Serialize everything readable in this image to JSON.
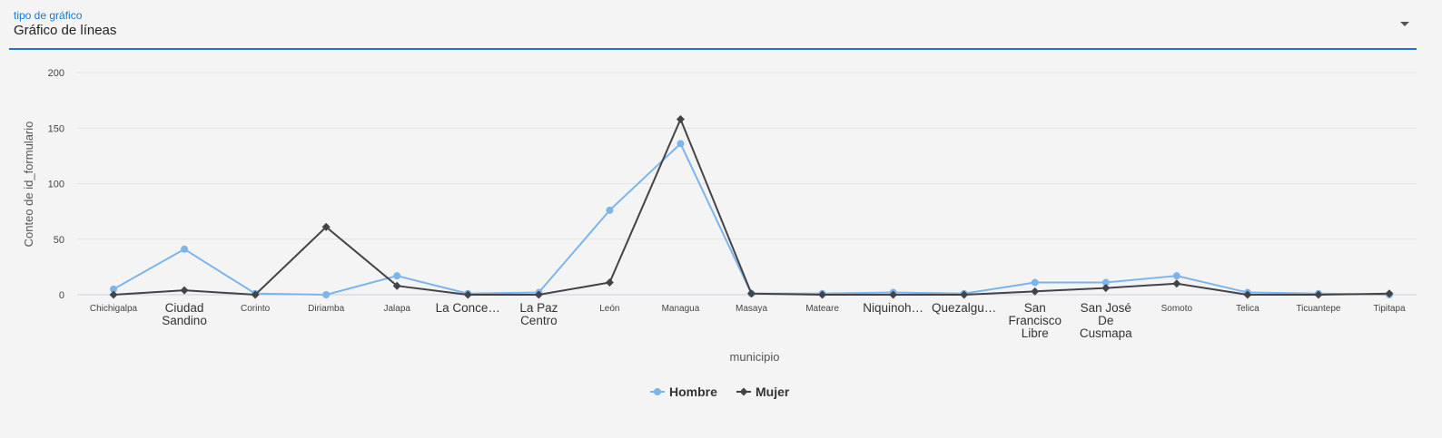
{
  "selector": {
    "label": "tipo de gráfico",
    "value": "Gráfico de líneas"
  },
  "chart_data": {
    "type": "line",
    "title": "",
    "xlabel": "municipio",
    "ylabel": "Conteo de id_formulario",
    "ylim": [
      0,
      200
    ],
    "yticks": [
      0,
      50,
      100,
      150,
      200
    ],
    "grid": true,
    "legend_position": "bottom-center",
    "categories": [
      "Chichigalpa",
      "Ciudad Sandino",
      "Corinto",
      "Diriamba",
      "Jalapa",
      "La Concepción",
      "La Paz Centro",
      "León",
      "Managua",
      "Masaya",
      "Mateare",
      "Niquinohomo",
      "Quezalguaque",
      "San Francisco Libre",
      "San José De Cusmapa",
      "Somoto",
      "Telica",
      "Ticuantepe",
      "Tipitapa"
    ],
    "tick_labels": [
      [
        "Chichigalpa"
      ],
      [
        "Ciudad",
        "Sandino"
      ],
      [
        "Corinto"
      ],
      [
        "Diriamba"
      ],
      [
        "Jalapa"
      ],
      [
        "La Conce…"
      ],
      [
        "La Paz",
        "Centro"
      ],
      [
        "León"
      ],
      [
        "Managua"
      ],
      [
        "Masaya"
      ],
      [
        "Mateare"
      ],
      [
        "Niquinoh…"
      ],
      [
        "Quezalgu…"
      ],
      [
        "San",
        "Francisco",
        "Libre"
      ],
      [
        "San José",
        "De",
        "Cusmapa"
      ],
      [
        "Somoto"
      ],
      [
        "Telica"
      ],
      [
        "Ticuantepe"
      ],
      [
        "Tipitapa"
      ]
    ],
    "big_labels": [
      1,
      5,
      6,
      11,
      12,
      13,
      14
    ],
    "series": [
      {
        "name": "Hombre",
        "color": "#7cb5ec",
        "marker": "circle",
        "values": [
          5,
          41,
          1,
          0,
          17,
          1,
          2,
          76,
          136,
          1,
          1,
          2,
          1,
          11,
          11,
          17,
          2,
          1,
          0
        ]
      },
      {
        "name": "Mujer",
        "color": "#434348",
        "marker": "diamond",
        "values": [
          0,
          4,
          0,
          61,
          8,
          0,
          0,
          11,
          158,
          1,
          0,
          0,
          0,
          3,
          6,
          10,
          0,
          0,
          1
        ]
      }
    ]
  }
}
